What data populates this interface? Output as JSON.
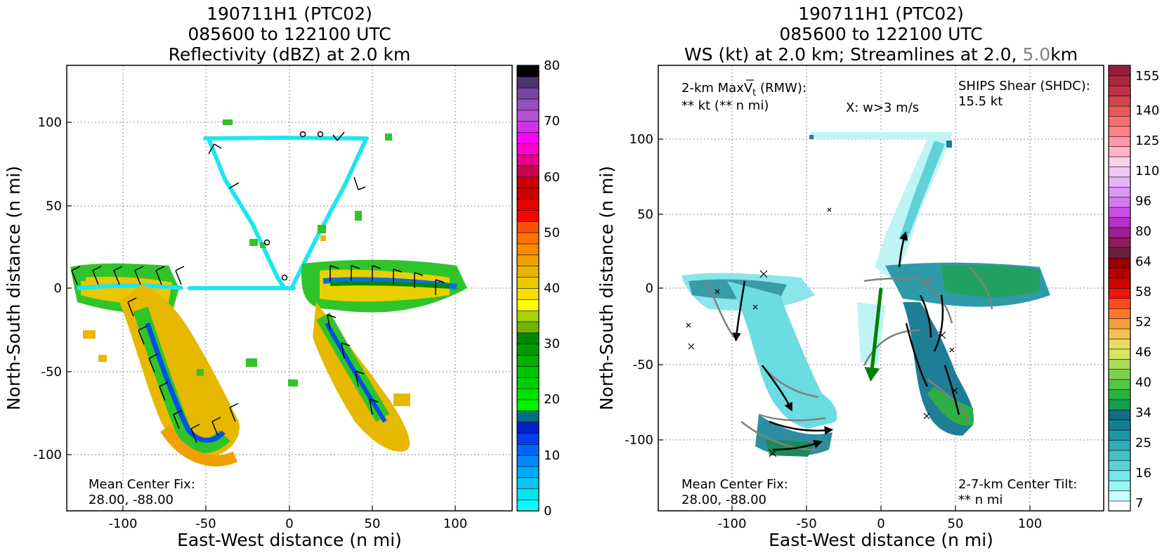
{
  "chart_data": [
    {
      "type": "heatmap",
      "title_lines": [
        "190711H1 (PTC02)",
        "085600 to 122100 UTC",
        "Reflectivity (dBZ) at 2.0 km"
      ],
      "xlabel": "East-West distance (n mi)",
      "ylabel": "North-South distance (n mi)",
      "xlim": [
        -135,
        135
      ],
      "ylim": [
        -135,
        135
      ],
      "xticks": [
        -100,
        -50,
        0,
        50,
        100
      ],
      "yticks": [
        -100,
        -50,
        0,
        50,
        100
      ],
      "grid": true,
      "annotations": {
        "center_fix_label": "Mean Center Fix:",
        "center_fix_value": "28.00, -88.00"
      },
      "colorbar": {
        "ticks": [
          "0",
          "10",
          "20",
          "30",
          "40",
          "50",
          "60",
          "70",
          "80"
        ],
        "vmin": 0,
        "vmax": 80,
        "colors": [
          "#00ffff",
          "#00e6ee",
          "#00c8f0",
          "#00aaf5",
          "#0088f8",
          "#0064f5",
          "#0040e8",
          "#0020c8",
          "#006e82",
          "#00f000",
          "#00e100",
          "#00d200",
          "#00c300",
          "#00b000",
          "#009a00",
          "#008600",
          "#6fb400",
          "#a6d200",
          "#ffff00",
          "#f5de00",
          "#ebc800",
          "#e6b400",
          "#f0a000",
          "#f58c00",
          "#ff7000",
          "#ff5000",
          "#ff0000",
          "#e60000",
          "#cc0000",
          "#c80000",
          "#cc0050",
          "#e6008c",
          "#ff00c8",
          "#ff00ff",
          "#d232e6",
          "#b450d2",
          "#9650be",
          "#7846a0",
          "#50326e",
          "#000000"
        ]
      }
    },
    {
      "type": "heatmap",
      "title_lines": [
        "190711H1 (PTC02)",
        "085600 to 122100 UTC"
      ],
      "title_line3": {
        "prefix": "WS (kt) at 2.0 km; Streamlines at 2.0, ",
        "highlight": "5.0",
        "suffix": "km"
      },
      "xlabel": "East-West distance (n mi)",
      "ylabel": "North-South distance (n mi)",
      "xlim": [
        -150,
        150
      ],
      "ylim": [
        -150,
        150
      ],
      "xticks": [
        -100,
        -50,
        0,
        50,
        100
      ],
      "yticks": [
        -100,
        -50,
        0,
        50,
        100
      ],
      "grid": true,
      "annotations": {
        "max_vt_line1": "2-km MaxV",
        "max_vt_sub": "t",
        "max_vt_rmw": " (RMW):",
        "max_vt_line2": "** kt (** n mi)",
        "w_label": "X: w>3 m/s",
        "ships_label": "SHIPS Shear (SHDC):",
        "ships_value": "15.5 kt",
        "tilt_label": "2-7-km Center Tilt:",
        "tilt_value": "** n mi",
        "center_fix_label": "Mean Center Fix:",
        "center_fix_value": "28.00, -88.00"
      },
      "shear_vector": {
        "x0": 0,
        "y0": 0,
        "x1": -7,
        "y1": -63
      },
      "colorbar": {
        "ticks": [
          "7",
          "16",
          "25",
          "34",
          "40",
          "46",
          "52",
          "58",
          "64",
          "80",
          "96",
          "110",
          "125",
          "140",
          "155"
        ],
        "colors": [
          "#ffffff",
          "#c8ffff",
          "#96f5f5",
          "#78e6e6",
          "#5ad2d8",
          "#46beca",
          "#32aab8",
          "#1e96a8",
          "#147f96",
          "#0e6e82",
          "#14a04a",
          "#28b43c",
          "#50c846",
          "#7cd250",
          "#a5dc5a",
          "#d2e664",
          "#e6dc64",
          "#f0c350",
          "#f5a03c",
          "#ff7828",
          "#ff4b1e",
          "#f01414",
          "#d20000",
          "#b40000",
          "#960000",
          "#6e1e3c",
          "#8c1e5a",
          "#a01e96",
          "#b432c8",
          "#c850e6",
          "#d278f0",
          "#dc96f5",
          "#e6b4f5",
          "#f0c8f0",
          "#f5d2e6",
          "#ffb4c8",
          "#ff96aa",
          "#ff8288",
          "#f56e6e",
          "#e65a5a",
          "#d24650",
          "#be3246",
          "#aa283c",
          "#961e3c"
        ]
      },
      "colors": {
        "shear": "#008000",
        "ships_text": "#008000",
        "tilt_text": "#ff0000",
        "highlight": "#808080"
      }
    }
  ]
}
